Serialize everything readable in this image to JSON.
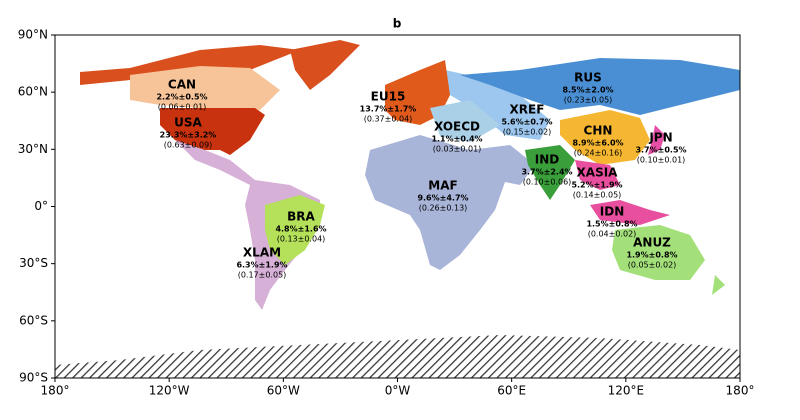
{
  "title": "b",
  "lat_ticks": [
    "90°N",
    "60°N",
    "30°N",
    "0°",
    "30°S",
    "60°S",
    "90°S"
  ],
  "lon_ticks": [
    "180°",
    "120°W",
    "60°W",
    "0°W",
    "60°E",
    "120°E",
    "180°"
  ],
  "regions": [
    {
      "name": "CAN",
      "share": "2.2%±0.5%",
      "value": "(0.06±0.01)"
    },
    {
      "name": "USA",
      "share": "23.3%±3.2%",
      "value": "(0.63±0.09)"
    },
    {
      "name": "EU15",
      "share": "13.7%±1.7%",
      "value": "(0.37±0.04)"
    },
    {
      "name": "XOECD",
      "share": "1.1%±0.4%",
      "value": "(0.03±0.01)"
    },
    {
      "name": "RUS",
      "share": "8.5%±2.0%",
      "value": "(0.23±0.05)"
    },
    {
      "name": "XREF",
      "share": "5.6%±0.7%",
      "value": "(0.15±0.02)"
    },
    {
      "name": "CHN",
      "share": "8.9%±6.0%",
      "value": "(0.24±0.16)"
    },
    {
      "name": "JPN",
      "share": "3.7%±0.5%",
      "value": "(0.10±0.01)"
    },
    {
      "name": "IND",
      "share": "3.7%±2.4%",
      "value": "(0.10±0.06)"
    },
    {
      "name": "XASIA",
      "share": "5.2%±1.9%",
      "value": "(0.14±0.05)"
    },
    {
      "name": "MAF",
      "share": "9.6%±4.7%",
      "value": "(0.26±0.13)"
    },
    {
      "name": "BRA",
      "share": "4.8%±1.6%",
      "value": "(0.13±0.04)"
    },
    {
      "name": "XLAM",
      "share": "6.3%±1.9%",
      "value": "(0.17±0.05)"
    },
    {
      "name": "IDN",
      "share": "1.5%±0.8%",
      "value": "(0.04±0.02)"
    },
    {
      "name": "ANUZ",
      "share": "1.9%±0.8%",
      "value": "(0.05±0.02)"
    }
  ]
}
